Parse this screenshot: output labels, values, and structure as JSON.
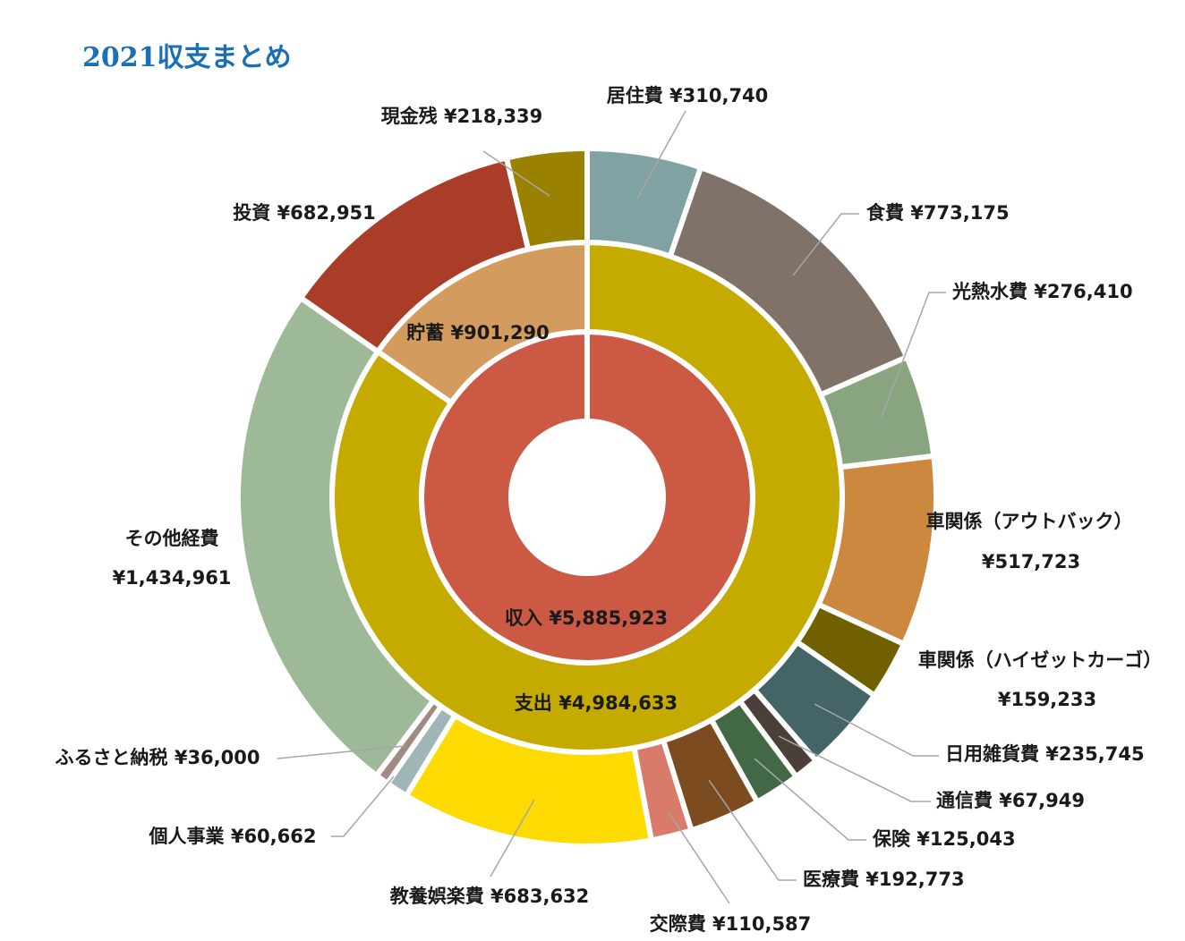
{
  "chart_data": {
    "type": "sunburst",
    "title": "2021収支まとめ",
    "center": [
      {
        "name": "収入",
        "value": 5885923,
        "value_label": "¥5,885,923",
        "color": "#cb5944"
      }
    ],
    "middle": [
      {
        "name": "支出",
        "value": 4984633,
        "value_label": "¥4,984,633",
        "color": "#c5aa00"
      },
      {
        "name": "貯蓄",
        "value": 901290,
        "value_label": "¥901,290",
        "color": "#d49b5e"
      }
    ],
    "outer": [
      {
        "name": "居住費",
        "value": 310740,
        "value_label": "¥310,740",
        "color": "#81a2a2",
        "parent": "支出"
      },
      {
        "name": "食費",
        "value": 773175,
        "value_label": "¥773,175",
        "color": "#807268",
        "parent": "支出"
      },
      {
        "name": "光熱水費",
        "value": 276410,
        "value_label": "¥276,410",
        "color": "#88a57f",
        "parent": "支出"
      },
      {
        "name": "車関係（アウトバック）",
        "value": 517723,
        "value_label": "¥517,723",
        "color": "#cd8840",
        "parent": "支出"
      },
      {
        "name": "車関係（ハイゼットカーゴ）",
        "value": 159233,
        "value_label": "¥159,233",
        "color": "#706000",
        "parent": "支出"
      },
      {
        "name": "日用雑貨費",
        "value": 235745,
        "value_label": "¥235,745",
        "color": "#456468",
        "parent": "支出"
      },
      {
        "name": "通信費",
        "value": 67949,
        "value_label": "¥67,949",
        "color": "#4a3f39",
        "parent": "支出"
      },
      {
        "name": "保険",
        "value": 125043,
        "value_label": "¥125,043",
        "color": "#426845",
        "parent": "支出"
      },
      {
        "name": "医療費",
        "value": 192773,
        "value_label": "¥192,773",
        "color": "#7c4b1f",
        "parent": "支出"
      },
      {
        "name": "交際費",
        "value": 110587,
        "value_label": "¥110,587",
        "color": "#d97b6b",
        "parent": "支出"
      },
      {
        "name": "教養娯楽費",
        "value": 683632,
        "value_label": "¥683,632",
        "color": "#fedb00",
        "parent": "支出"
      },
      {
        "name": "個人事業",
        "value": 60662,
        "value_label": "¥60,662",
        "color": "#9fb5b8",
        "parent": "支出"
      },
      {
        "name": "ふるさと納税",
        "value": 36000,
        "value_label": "¥36,000",
        "color": "#a08a82",
        "parent": "支出"
      },
      {
        "name": "その他経費",
        "value": 1434961,
        "value_label": "¥1,434,961",
        "color": "#9db998",
        "parent": "支出"
      },
      {
        "name": "投資",
        "value": 682951,
        "value_label": "¥682,951",
        "color": "#a93d28",
        "parent": "貯蓄"
      },
      {
        "name": "現金残",
        "value": 218339,
        "value_label": "¥218,339",
        "color": "#9a8100",
        "parent": "貯蓄"
      }
    ]
  }
}
